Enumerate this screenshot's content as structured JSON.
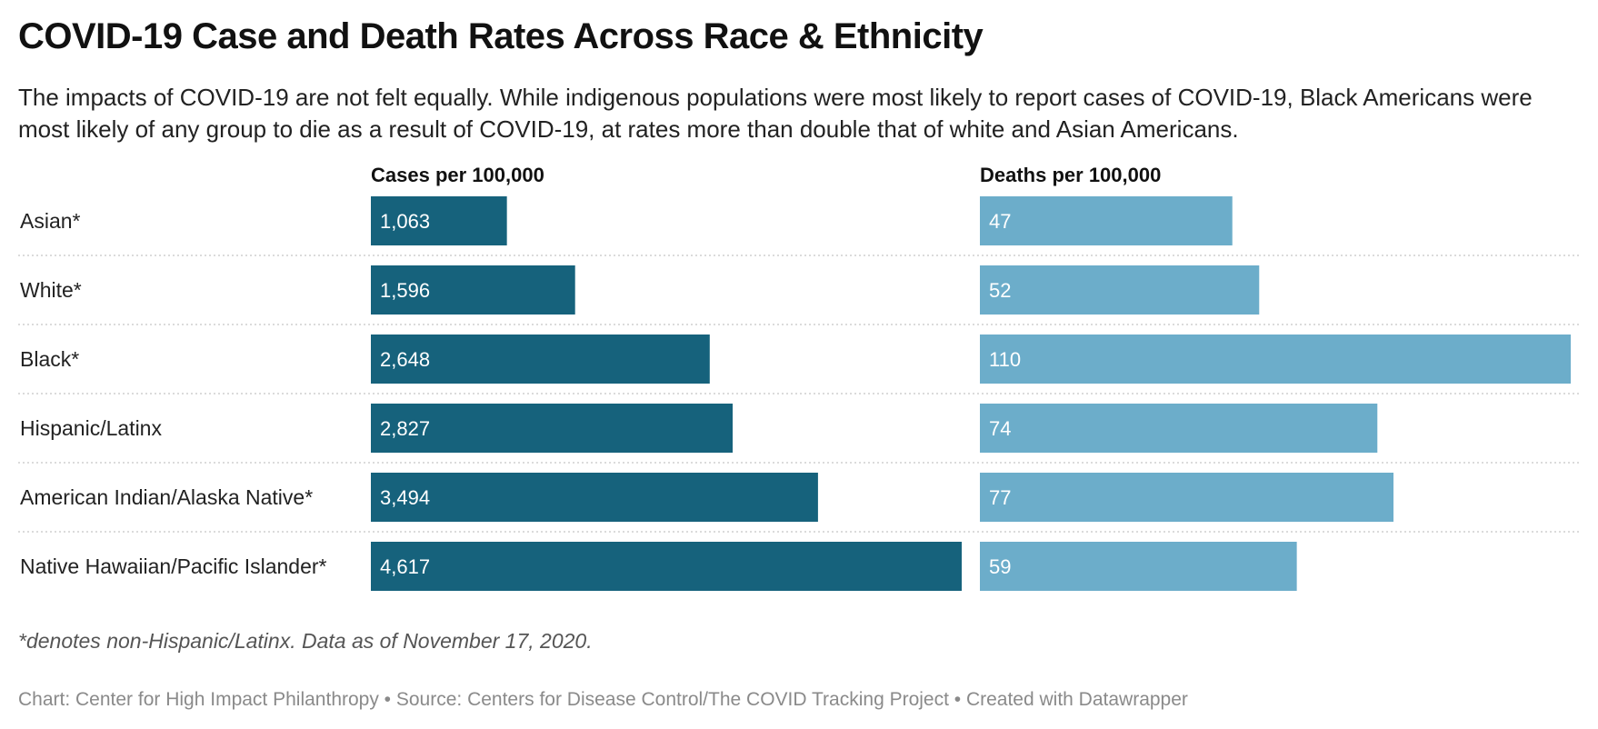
{
  "chart_data": {
    "type": "bar",
    "title": "COVID-19 Case and Death Rates Across Race & Ethnicity",
    "subtitle": "The impacts of COVID-19 are not felt equally. While indigenous populations were most likely to report cases of COVID-19, Black Americans were most likely of any group to die as a result of COVID-19, at rates more than double that of white and Asian Americans.",
    "categories": [
      "Asian*",
      "White*",
      "Black*",
      "Hispanic/Latinx",
      "American Indian/Alaska Native*",
      "Native Hawaiian/Pacific Islander*"
    ],
    "series": [
      {
        "name": "Cases per 100,000",
        "values": [
          1063,
          1596,
          2648,
          2827,
          3494,
          4617
        ],
        "labels": [
          "1,063",
          "1,596",
          "2,648",
          "2,827",
          "3,494",
          "4,617"
        ],
        "color": "#16627c"
      },
      {
        "name": "Deaths per 100,000",
        "values": [
          47,
          52,
          110,
          74,
          77,
          59
        ],
        "labels": [
          "47",
          "52",
          "110",
          "74",
          "77",
          "59"
        ],
        "color": "#6cadca"
      }
    ],
    "grid": false,
    "notes": "*denotes non-Hispanic/Latinx. Data as of November 17, 2020.",
    "source": "Chart: Center for High Impact Philanthropy • Source: Centers for Disease Control/The COVID Tracking Project • Created with Datawrapper"
  }
}
